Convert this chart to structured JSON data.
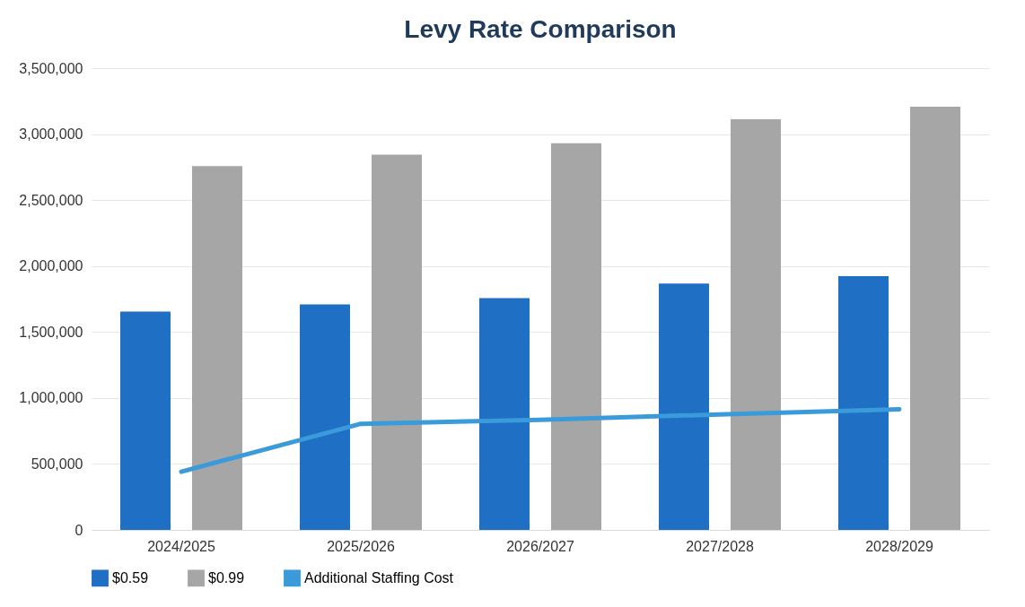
{
  "chart_data": {
    "type": "bar",
    "title": "Levy Rate Comparison",
    "categories": [
      "2024/2025",
      "2025/2026",
      "2026/2027",
      "2027/2028",
      "2028/2029"
    ],
    "series": [
      {
        "name": "$0.59",
        "color": "#1f6fc4",
        "values": [
          1655000,
          1710000,
          1757000,
          1868000,
          1923000
        ]
      },
      {
        "name": "$0.99",
        "color": "#a6a6a6",
        "values": [
          2758000,
          2845000,
          2931000,
          3113000,
          3207000
        ]
      },
      {
        "name": "Additional Staffing Cost",
        "type": "line",
        "color": "#3b9ad9",
        "values": [
          441000,
          804000,
          835000,
          875000,
          914000
        ]
      }
    ],
    "ylim": [
      0,
      3500000
    ],
    "yticks": [
      0,
      {
        "value": 500000,
        "label": "500,000"
      },
      {
        "value": 1000000,
        "label": "1,000,000"
      },
      {
        "value": 1500000,
        "label": "1,500,000"
      },
      {
        "value": 2000000,
        "label": "2,000,000"
      },
      {
        "value": 2500000,
        "label": "2,500,000"
      },
      {
        "value": 3000000,
        "label": "3,000,000"
      },
      {
        "value": 3500000,
        "label": "3,500,000"
      }
    ],
    "grid": "y",
    "legend": "bottom",
    "marker": "none",
    "line_style": "solid"
  }
}
